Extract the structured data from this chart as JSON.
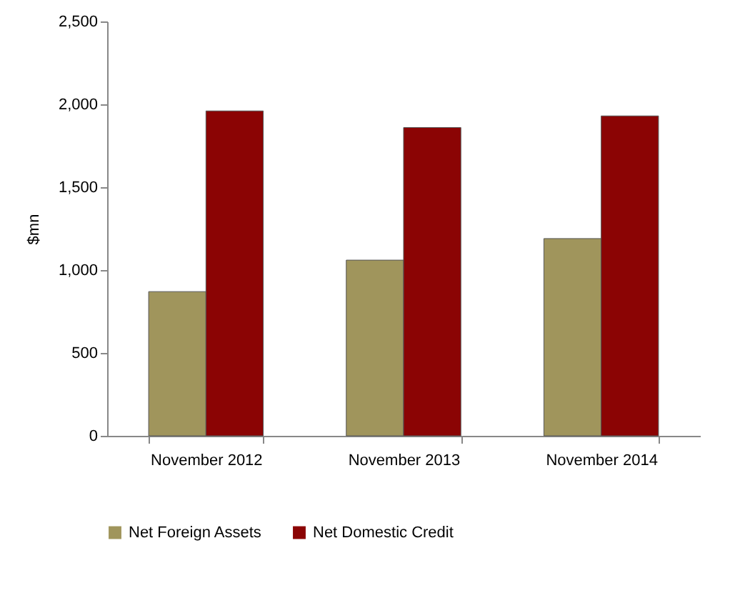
{
  "chart_data": {
    "type": "bar",
    "ylabel": "$mn",
    "categories": [
      "November 2012",
      "November 2013",
      "November 2014"
    ],
    "series": [
      {
        "name": "Net Foreign Assets",
        "color": "#a0955c",
        "values": [
          870,
          1060,
          1190
        ]
      },
      {
        "name": "Net Domestic Credit",
        "color": "#8b0404",
        "values": [
          1960,
          1860,
          1930
        ]
      }
    ],
    "ylim": [
      0,
      2500
    ],
    "yticks": [
      0,
      500,
      {
        "value": 1000,
        "label": "1,000"
      },
      {
        "value": 1500,
        "label": "1,500"
      },
      {
        "value": 2000,
        "label": "2,000"
      },
      {
        "value": 2500,
        "label": "2,500"
      }
    ],
    "grid": false,
    "legend": "bottom"
  }
}
